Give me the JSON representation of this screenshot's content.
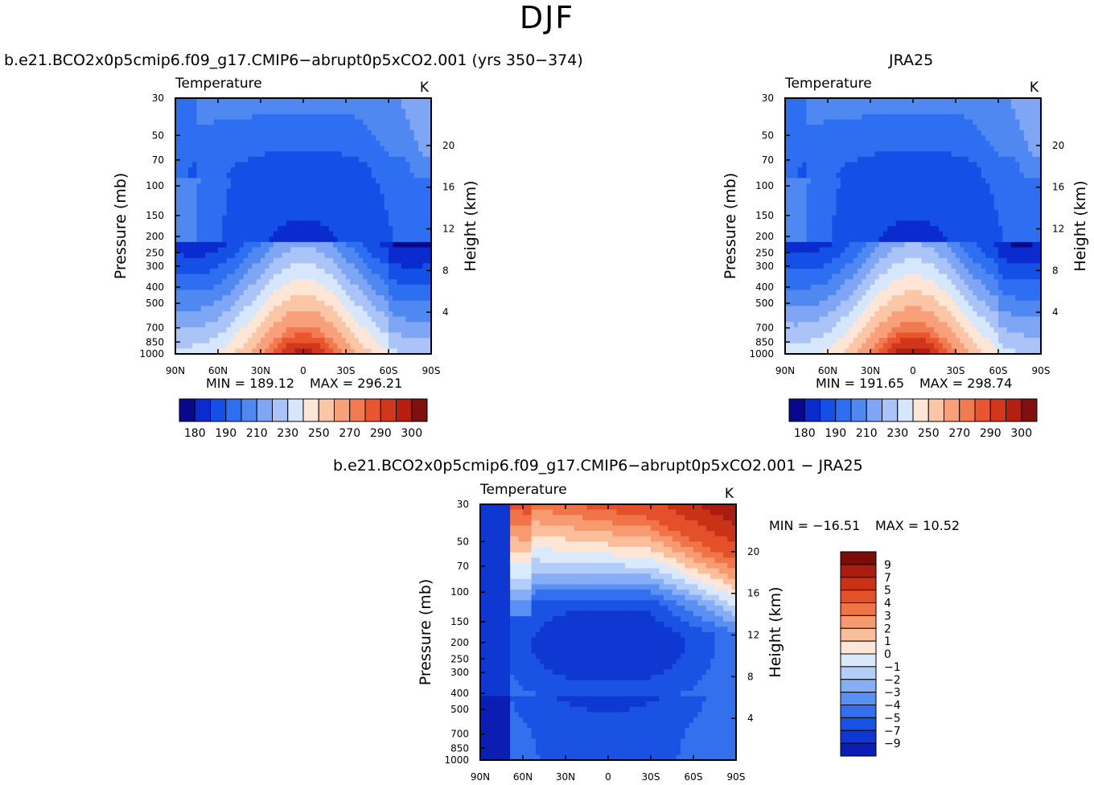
{
  "figure_title": "DJF",
  "palettes": {
    "abs": [
      "#08088c",
      "#0a2bd0",
      "#1450e6",
      "#2e6ef0",
      "#5088f2",
      "#7fa6f5",
      "#aac4f7",
      "#d6e6fb",
      "#fde6d6",
      "#fbc6a6",
      "#f8a07a",
      "#f27a50",
      "#e9552e",
      "#d2361b",
      "#b41f10",
      "#801010"
    ],
    "diff": [
      "#0c0c70",
      "#0a1eb4",
      "#0f37d2",
      "#1a53e4",
      "#3370ee",
      "#5a8ff4",
      "#86aef6",
      "#b3cdf9",
      "#dbe9fc",
      "#fde6d6",
      "#fbbe9a",
      "#f79a70",
      "#f07448",
      "#e4502a",
      "#ca3216",
      "#a81d10",
      "#7a0c0c"
    ]
  },
  "chart_data": [
    {
      "type": "heatmap",
      "title": "b.e21.BCO2x0p5cmip6.f09_g17.CMIP6−abrupt0p5xCO2.001 (yrs 350−374)",
      "left_label": "Temperature",
      "right_label": "K",
      "xlabel": "",
      "ylabel": "Pressure (mb)",
      "y2label": "Height (km)",
      "x_ticks": [
        "90N",
        "60N",
        "30N",
        "0",
        "30S",
        "60S",
        "90S"
      ],
      "y_ticks": [
        30,
        50,
        70,
        100,
        150,
        200,
        250,
        300,
        400,
        500,
        700,
        850,
        1000
      ],
      "y2_ticks": [
        4,
        8,
        12,
        16,
        20
      ],
      "ylim": [
        1000,
        30
      ],
      "log_y": true,
      "min_text": "MIN =  189.12",
      "max_text": "MAX =  296.21",
      "colorbar": {
        "orientation": "horizontal",
        "labels": [
          "180",
          "190",
          "210",
          "230",
          "250",
          "270",
          "290",
          "300"
        ]
      }
    },
    {
      "type": "heatmap",
      "title": "JRA25",
      "left_label": "Temperature",
      "right_label": "K",
      "xlabel": "",
      "ylabel": "Pressure (mb)",
      "y2label": "Height (km)",
      "x_ticks": [
        "90N",
        "60N",
        "30N",
        "0",
        "30S",
        "60S",
        "90S"
      ],
      "y_ticks": [
        30,
        50,
        70,
        100,
        150,
        200,
        250,
        300,
        400,
        500,
        700,
        850,
        1000
      ],
      "y2_ticks": [
        4,
        8,
        12,
        16,
        20
      ],
      "ylim": [
        1000,
        30
      ],
      "log_y": true,
      "min_text": "MIN =  191.65",
      "max_text": "MAX =  298.74",
      "colorbar": {
        "orientation": "horizontal",
        "labels": [
          "180",
          "190",
          "210",
          "230",
          "250",
          "270",
          "290",
          "300"
        ]
      }
    },
    {
      "type": "heatmap",
      "title": "b.e21.BCO2x0p5cmip6.f09_g17.CMIP6−abrupt0p5xCO2.001  −  JRA25",
      "left_label": "Temperature",
      "right_label": "K",
      "xlabel": "",
      "ylabel": "Pressure (mb)",
      "y2label": "Height (km)",
      "x_ticks": [
        "90N",
        "60N",
        "30N",
        "0",
        "30S",
        "60S",
        "90S"
      ],
      "y_ticks": [
        30,
        50,
        70,
        100,
        150,
        200,
        250,
        300,
        400,
        500,
        700,
        850,
        1000
      ],
      "y2_ticks": [
        4,
        8,
        12,
        16,
        20
      ],
      "ylim": [
        1000,
        30
      ],
      "log_y": true,
      "min_text": "MIN = −16.51",
      "max_text": "MAX =   10.52",
      "colorbar": {
        "orientation": "vertical",
        "labels": [
          "9",
          "7",
          "5",
          "4",
          "3",
          "2",
          "1",
          "0",
          "−1",
          "−2",
          "−3",
          "−4",
          "−5",
          "−7",
          "−9"
        ]
      }
    }
  ]
}
